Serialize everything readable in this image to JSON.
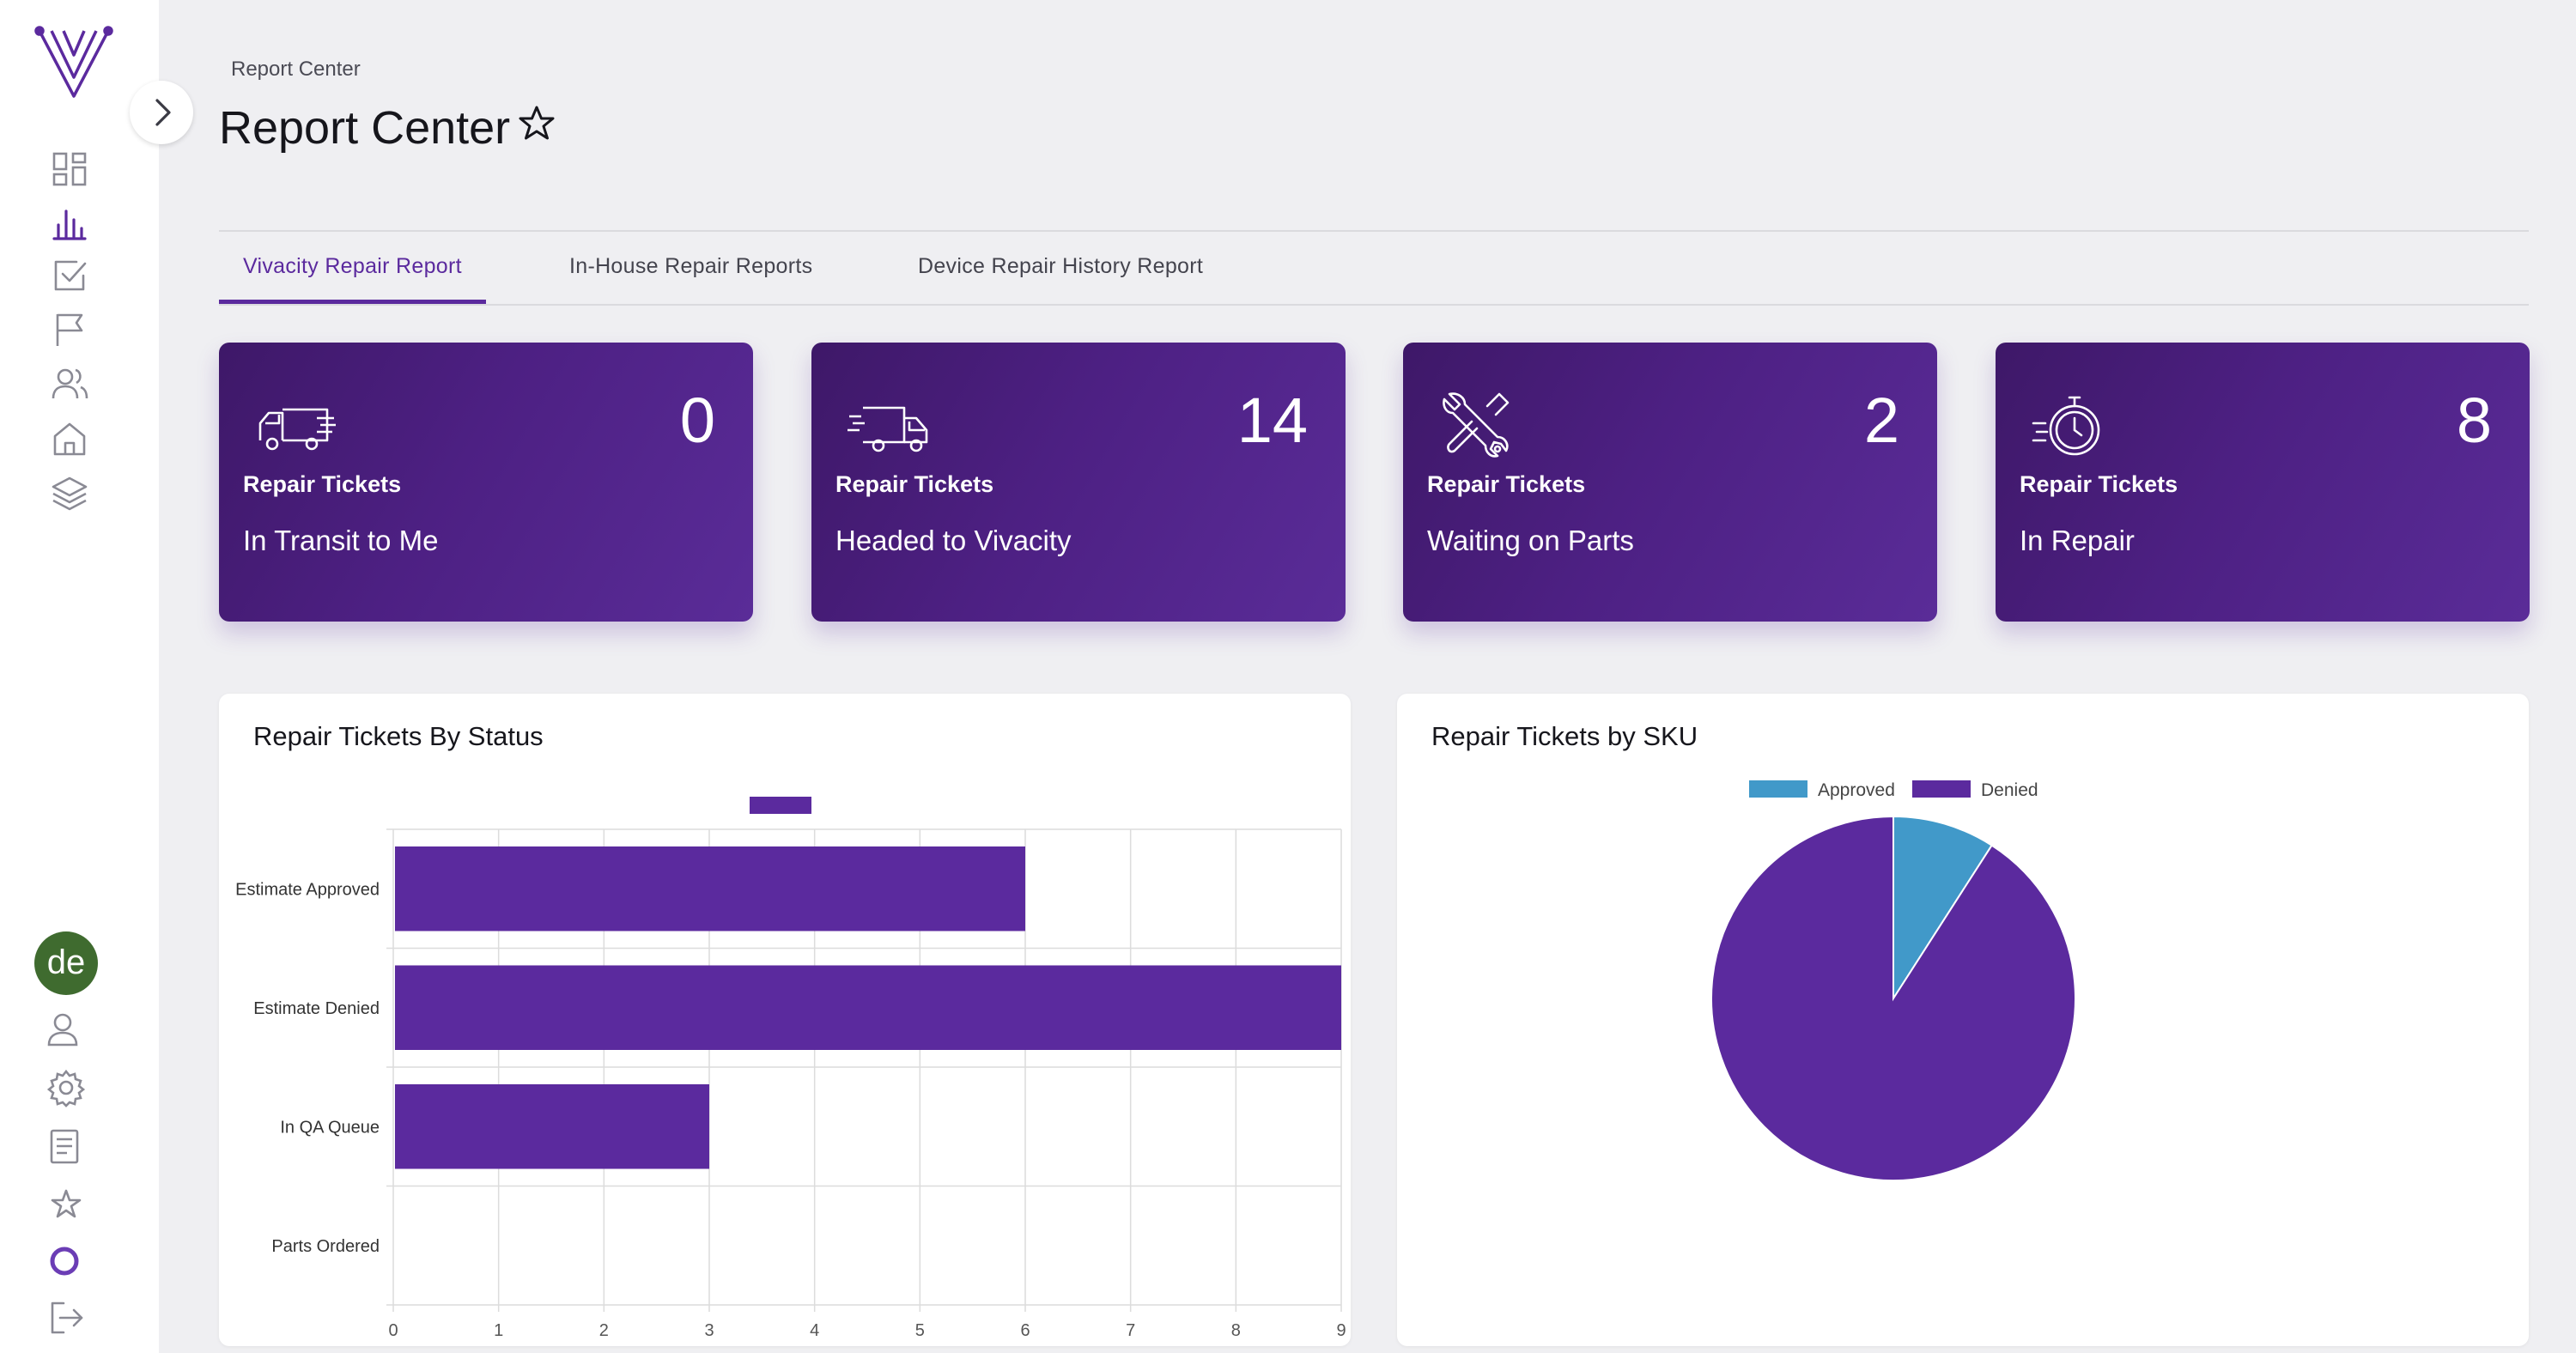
{
  "breadcrumb": "Report Center",
  "page_title": "Report Center",
  "avatar_initials": "de",
  "sidebar": {
    "top_icons": [
      "dashboard-icon",
      "bar-chart-icon",
      "checkbox-icon",
      "flag-icon",
      "users-icon",
      "home-icon",
      "layers-icon"
    ],
    "bottom_icons": [
      "user-icon",
      "gear-icon",
      "document-icon",
      "star-icon",
      "circle-icon",
      "logout-icon"
    ]
  },
  "tabs": [
    {
      "label": "Vivacity Repair Report",
      "active": true
    },
    {
      "label": "In-House Repair Reports",
      "active": false
    },
    {
      "label": "Device Repair History Report",
      "active": false
    }
  ],
  "cards": [
    {
      "value": "0",
      "sub": "Repair Tickets",
      "label": "In Transit to Me",
      "icon": "truck-icon"
    },
    {
      "value": "14",
      "sub": "Repair Tickets",
      "label": "Headed to Vivacity",
      "icon": "fast-truck-icon"
    },
    {
      "value": "2",
      "sub": "Repair Tickets",
      "label": "Waiting on Parts",
      "icon": "tools-icon"
    },
    {
      "value": "8",
      "sub": "Repair Tickets",
      "label": "In Repair",
      "icon": "stopwatch-icon"
    }
  ],
  "colors": {
    "accent": "#5b2a9e",
    "bar": "#5b2a9e",
    "approved": "#4199c9",
    "denied": "#5b2a9e"
  },
  "chart_data": [
    {
      "type": "bar",
      "orientation": "horizontal",
      "title": "Repair Tickets By Status",
      "categories": [
        "Estimate Approved",
        "Estimate Denied",
        "In QA Queue",
        "Parts Ordered"
      ],
      "values": [
        6,
        9,
        3,
        0
      ],
      "xlim": [
        0,
        9
      ],
      "xticks": [
        "0",
        "1",
        "2",
        "3",
        "4",
        "5",
        "6",
        "7",
        "8",
        "9"
      ],
      "grid": true,
      "legend": "top-center"
    },
    {
      "type": "pie",
      "title": "Repair Tickets by SKU",
      "labels": [
        "Approved",
        "Denied"
      ],
      "values": [
        1,
        10
      ],
      "legend": "top-center"
    }
  ]
}
